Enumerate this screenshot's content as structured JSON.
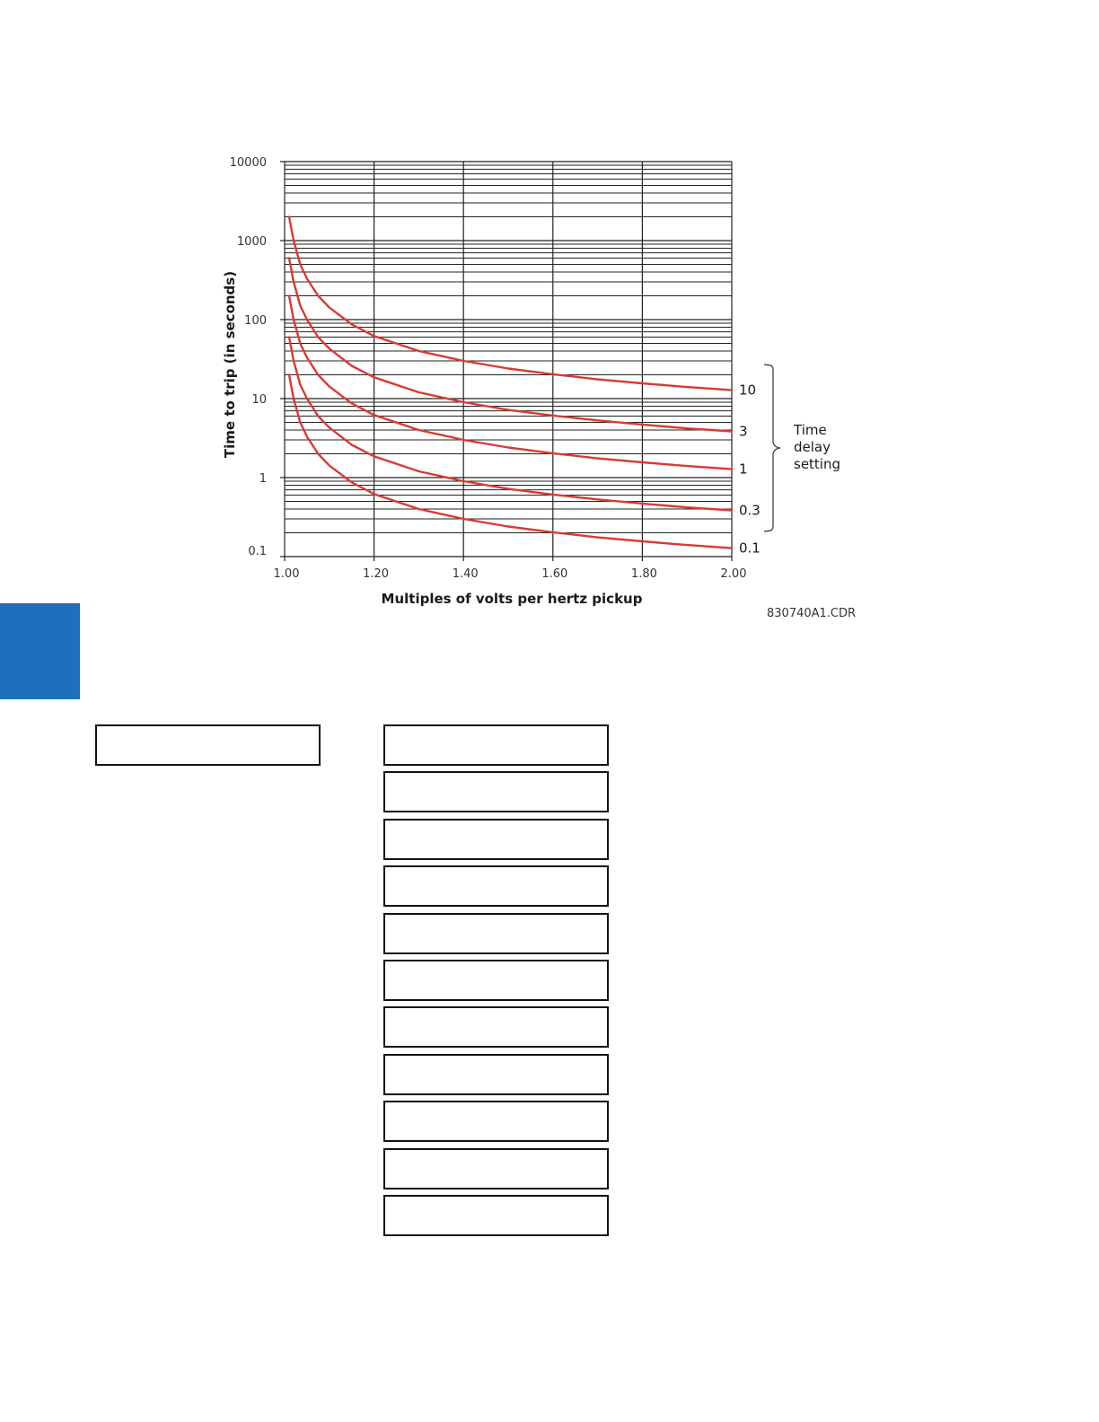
{
  "chart_data": {
    "type": "line",
    "title": "",
    "xlabel": "Multiples of volts per hertz pickup",
    "ylabel": "Time to trip (in seconds)",
    "xlim": [
      1.0,
      2.0
    ],
    "ylim": [
      0.1,
      10000
    ],
    "y_scale": "log",
    "grid": true,
    "x_ticks": [
      "1.00",
      "1.20",
      "1.40",
      "1.60",
      "1.80",
      "2.00"
    ],
    "y_ticks": [
      "10000",
      "1000",
      "100",
      "10",
      "1",
      "0.1"
    ],
    "curve_color": "#d93a35",
    "x": [
      1.01,
      1.02,
      1.035,
      1.05,
      1.075,
      1.1,
      1.15,
      1.2,
      1.3,
      1.4,
      1.5,
      1.6,
      1.7,
      1.8,
      1.9,
      2.0
    ],
    "series": [
      {
        "name": "10",
        "values": [
          2000,
          1000,
          500,
          330,
          200,
          142,
          87,
          62,
          40,
          30,
          24,
          20.3,
          17.5,
          15.6,
          14,
          12.8
        ]
      },
      {
        "name": "3",
        "values": [
          600,
          300,
          150,
          100,
          60,
          43,
          26,
          18.6,
          12,
          9,
          7.2,
          6.1,
          5.3,
          4.7,
          4.2,
          3.85
        ]
      },
      {
        "name": "1",
        "values": [
          200,
          100,
          50,
          33,
          20,
          14.2,
          8.7,
          6.2,
          4,
          3,
          2.4,
          2.03,
          1.75,
          1.56,
          1.4,
          1.28
        ]
      },
      {
        "name": "0.3",
        "values": [
          60,
          30,
          15,
          10,
          6,
          4.3,
          2.6,
          1.86,
          1.2,
          0.9,
          0.72,
          0.61,
          0.53,
          0.47,
          0.42,
          0.385
        ]
      },
      {
        "name": "0.1",
        "values": [
          20,
          10,
          5,
          3.3,
          2,
          1.42,
          0.87,
          0.62,
          0.4,
          0.3,
          0.24,
          0.203,
          0.175,
          0.156,
          0.14,
          0.128
        ]
      }
    ],
    "legend": {
      "title_lines": [
        "Time",
        "delay",
        "setting"
      ],
      "placement": "right"
    },
    "figure_code": "830740A1.CDR"
  },
  "page": {
    "tab_color": "#1f6fbf",
    "boxes_left_count": 1,
    "boxes_right_count": 11
  }
}
